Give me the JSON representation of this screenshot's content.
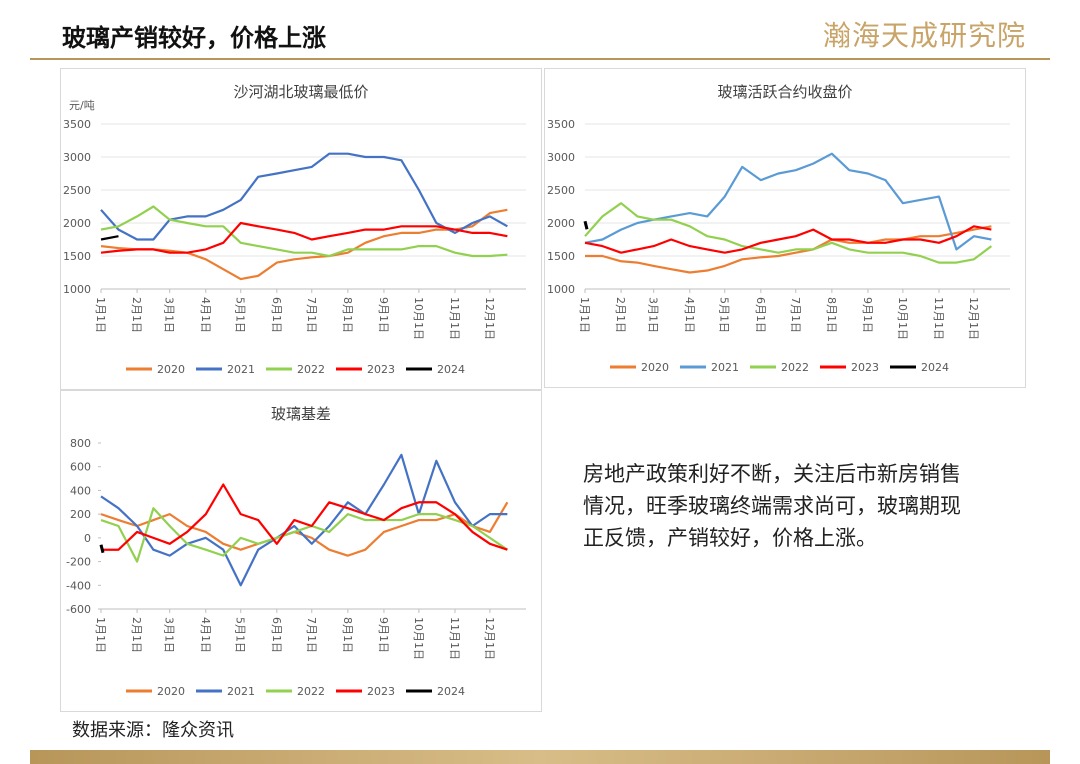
{
  "header": {
    "title": "玻璃产销较好，价格上涨",
    "logo": "瀚海天成研究院"
  },
  "note": "房地产政策利好不断，关注后市新房销售情况，旺季玻璃终端需求尚可，玻璃期现正反馈，产销较好，价格上涨。",
  "source": "数据来源：隆众资讯",
  "chart_data": [
    {
      "type": "line",
      "title": "沙河湖北玻璃最低价",
      "y_label": "元/吨",
      "x": [
        1,
        16,
        32,
        46,
        60,
        75,
        91,
        106,
        121,
        136,
        152,
        167,
        182,
        197,
        213,
        228,
        244,
        259,
        274,
        289,
        305,
        320,
        335,
        350
      ],
      "xlim": [
        1,
        366
      ],
      "xticks": [
        {
          "value": 1,
          "label": "1月1日"
        },
        {
          "value": 32,
          "label": "2月1日"
        },
        {
          "value": 60,
          "label": "3月1日"
        },
        {
          "value": 91,
          "label": "4月1日"
        },
        {
          "value": 121,
          "label": "5月1日"
        },
        {
          "value": 152,
          "label": "6月1日"
        },
        {
          "value": 182,
          "label": "7月1日"
        },
        {
          "value": 213,
          "label": "8月1日"
        },
        {
          "value": 244,
          "label": "9月1日"
        },
        {
          "value": 274,
          "label": "10月1日"
        },
        {
          "value": 305,
          "label": "11月1日"
        },
        {
          "value": 335,
          "label": "12月1日"
        }
      ],
      "ylim": [
        1000,
        3500
      ],
      "yticks": [
        1000,
        1500,
        2000,
        2500,
        3000,
        3500
      ],
      "grid": true,
      "series": [
        {
          "name": "2020",
          "color": "#ed7d31",
          "values": [
            1650,
            1620,
            1600,
            1600,
            1580,
            1550,
            1450,
            1300,
            1150,
            1200,
            1400,
            1450,
            1480,
            1500,
            1550,
            1700,
            1800,
            1850,
            1850,
            1900,
            1900,
            1950,
            2150,
            2200
          ]
        },
        {
          "name": "2021",
          "color": "#4472c4",
          "values": [
            2200,
            1900,
            1750,
            1750,
            2050,
            2100,
            2100,
            2200,
            2350,
            2700,
            2750,
            2800,
            2850,
            3050,
            3050,
            3000,
            3000,
            2950,
            2500,
            2000,
            1850,
            2000,
            2100,
            1950
          ]
        },
        {
          "name": "2022",
          "color": "#92d050",
          "values": [
            1900,
            1950,
            2100,
            2250,
            2050,
            2000,
            1950,
            1950,
            1700,
            1650,
            1600,
            1550,
            1550,
            1500,
            1600,
            1600,
            1600,
            1600,
            1650,
            1650,
            1550,
            1500,
            1500,
            1520
          ]
        },
        {
          "name": "2023",
          "color": "#ff0000",
          "values": [
            1550,
            1580,
            1600,
            1600,
            1550,
            1550,
            1600,
            1700,
            2000,
            1950,
            1900,
            1850,
            1750,
            1800,
            1850,
            1900,
            1900,
            1950,
            1950,
            1950,
            1900,
            1850,
            1850,
            1800
          ]
        },
        {
          "name": "2024",
          "color": "#000000",
          "values": [
            1750,
            1800,
            null,
            null,
            null,
            null,
            null,
            null,
            null,
            null,
            null,
            null,
            null,
            null,
            null,
            null,
            null,
            null,
            null,
            null,
            null,
            null,
            null,
            null
          ]
        }
      ]
    },
    {
      "type": "line",
      "title": "玻璃活跃合约收盘价",
      "x": [
        1,
        16,
        32,
        46,
        60,
        75,
        91,
        106,
        121,
        136,
        152,
        167,
        182,
        197,
        213,
        228,
        244,
        259,
        274,
        289,
        305,
        320,
        335,
        350
      ],
      "xlim": [
        1,
        366
      ],
      "xticks": [
        {
          "value": 1,
          "label": "1月1日"
        },
        {
          "value": 32,
          "label": "2月1日"
        },
        {
          "value": 60,
          "label": "3月1日"
        },
        {
          "value": 91,
          "label": "4月1日"
        },
        {
          "value": 121,
          "label": "5月1日"
        },
        {
          "value": 152,
          "label": "6月1日"
        },
        {
          "value": 182,
          "label": "7月1日"
        },
        {
          "value": 213,
          "label": "8月1日"
        },
        {
          "value": 244,
          "label": "9月1日"
        },
        {
          "value": 274,
          "label": "10月1日"
        },
        {
          "value": 305,
          "label": "11月1日"
        },
        {
          "value": 335,
          "label": "12月1日"
        }
      ],
      "ylim": [
        1000,
        3500
      ],
      "yticks": [
        1000,
        1500,
        2000,
        2500,
        3000,
        3500
      ],
      "grid": true,
      "series": [
        {
          "name": "2020",
          "color": "#ed7d31",
          "values": [
            1500,
            1500,
            1420,
            1400,
            1350,
            1300,
            1250,
            1280,
            1350,
            1450,
            1480,
            1500,
            1550,
            1600,
            1750,
            1700,
            1700,
            1750,
            1750,
            1800,
            1800,
            1850,
            1900,
            1950
          ]
        },
        {
          "name": "2021",
          "color": "#5b9bd5",
          "values": [
            1700,
            1750,
            1900,
            2000,
            2050,
            2100,
            2150,
            2100,
            2400,
            2850,
            2650,
            2750,
            2800,
            2900,
            3050,
            2800,
            2750,
            2650,
            2300,
            2350,
            2400,
            1600,
            1800,
            1750
          ]
        },
        {
          "name": "2022",
          "color": "#92d050",
          "values": [
            1800,
            2100,
            2300,
            2100,
            2050,
            2050,
            1950,
            1800,
            1750,
            1650,
            1600,
            1550,
            1600,
            1600,
            1700,
            1600,
            1550,
            1550,
            1550,
            1500,
            1400,
            1400,
            1450,
            1650
          ]
        },
        {
          "name": "2023",
          "color": "#ff0000",
          "values": [
            1700,
            1650,
            1550,
            1600,
            1650,
            1750,
            1650,
            1600,
            1550,
            1600,
            1700,
            1750,
            1800,
            1900,
            1750,
            1750,
            1700,
            1700,
            1750,
            1750,
            1700,
            1800,
            1950,
            1900
          ]
        },
        {
          "name": "2024",
          "color": "#000000",
          "values": [
            1950,
            null,
            null,
            null,
            null,
            null,
            null,
            null,
            null,
            null,
            null,
            null,
            null,
            null,
            null,
            null,
            null,
            null,
            null,
            null,
            null,
            null,
            null,
            null
          ]
        }
      ]
    },
    {
      "type": "line",
      "title": "玻璃基差",
      "x": [
        1,
        16,
        32,
        46,
        60,
        75,
        91,
        106,
        121,
        136,
        152,
        167,
        182,
        197,
        213,
        228,
        244,
        259,
        274,
        289,
        305,
        320,
        335,
        350
      ],
      "xlim": [
        1,
        366
      ],
      "xticks": [
        {
          "value": 1,
          "label": "1月1日"
        },
        {
          "value": 32,
          "label": "2月1日"
        },
        {
          "value": 60,
          "label": "3月1日"
        },
        {
          "value": 91,
          "label": "4月1日"
        },
        {
          "value": 121,
          "label": "5月1日"
        },
        {
          "value": 152,
          "label": "6月1日"
        },
        {
          "value": 182,
          "label": "7月1日"
        },
        {
          "value": 213,
          "label": "8月1日"
        },
        {
          "value": 244,
          "label": "9月1日"
        },
        {
          "value": 274,
          "label": "10月1日"
        },
        {
          "value": 305,
          "label": "11月1日"
        },
        {
          "value": 335,
          "label": "12月1日"
        }
      ],
      "ylim": [
        -600,
        800
      ],
      "yticks": [
        -600,
        -400,
        -200,
        0,
        200,
        400,
        600,
        800
      ],
      "grid": false,
      "series": [
        {
          "name": "2020",
          "color": "#ed7d31",
          "values": [
            200,
            150,
            100,
            150,
            200,
            100,
            50,
            -50,
            -100,
            -50,
            0,
            50,
            0,
            -100,
            -150,
            -100,
            50,
            100,
            150,
            150,
            200,
            100,
            50,
            300
          ]
        },
        {
          "name": "2021",
          "color": "#4472c4",
          "values": [
            350,
            250,
            100,
            -100,
            -150,
            -50,
            0,
            -100,
            -400,
            -100,
            0,
            100,
            -50,
            100,
            300,
            200,
            450,
            700,
            200,
            650,
            300,
            100,
            200,
            200
          ]
        },
        {
          "name": "2022",
          "color": "#92d050",
          "values": [
            150,
            100,
            -200,
            250,
            100,
            -50,
            -100,
            -150,
            0,
            -50,
            0,
            50,
            100,
            50,
            200,
            150,
            150,
            150,
            200,
            200,
            150,
            100,
            0,
            -100
          ]
        },
        {
          "name": "2023",
          "color": "#ff0000",
          "values": [
            -100,
            -100,
            50,
            0,
            -50,
            50,
            200,
            450,
            200,
            150,
            -50,
            150,
            100,
            300,
            250,
            200,
            150,
            250,
            300,
            300,
            200,
            50,
            -50,
            -100
          ]
        },
        {
          "name": "2024",
          "color": "#000000",
          "values": [
            -100,
            null,
            null,
            null,
            null,
            null,
            null,
            null,
            null,
            null,
            null,
            null,
            null,
            null,
            null,
            null,
            null,
            null,
            null,
            null,
            null,
            null,
            null,
            null
          ]
        }
      ]
    }
  ]
}
